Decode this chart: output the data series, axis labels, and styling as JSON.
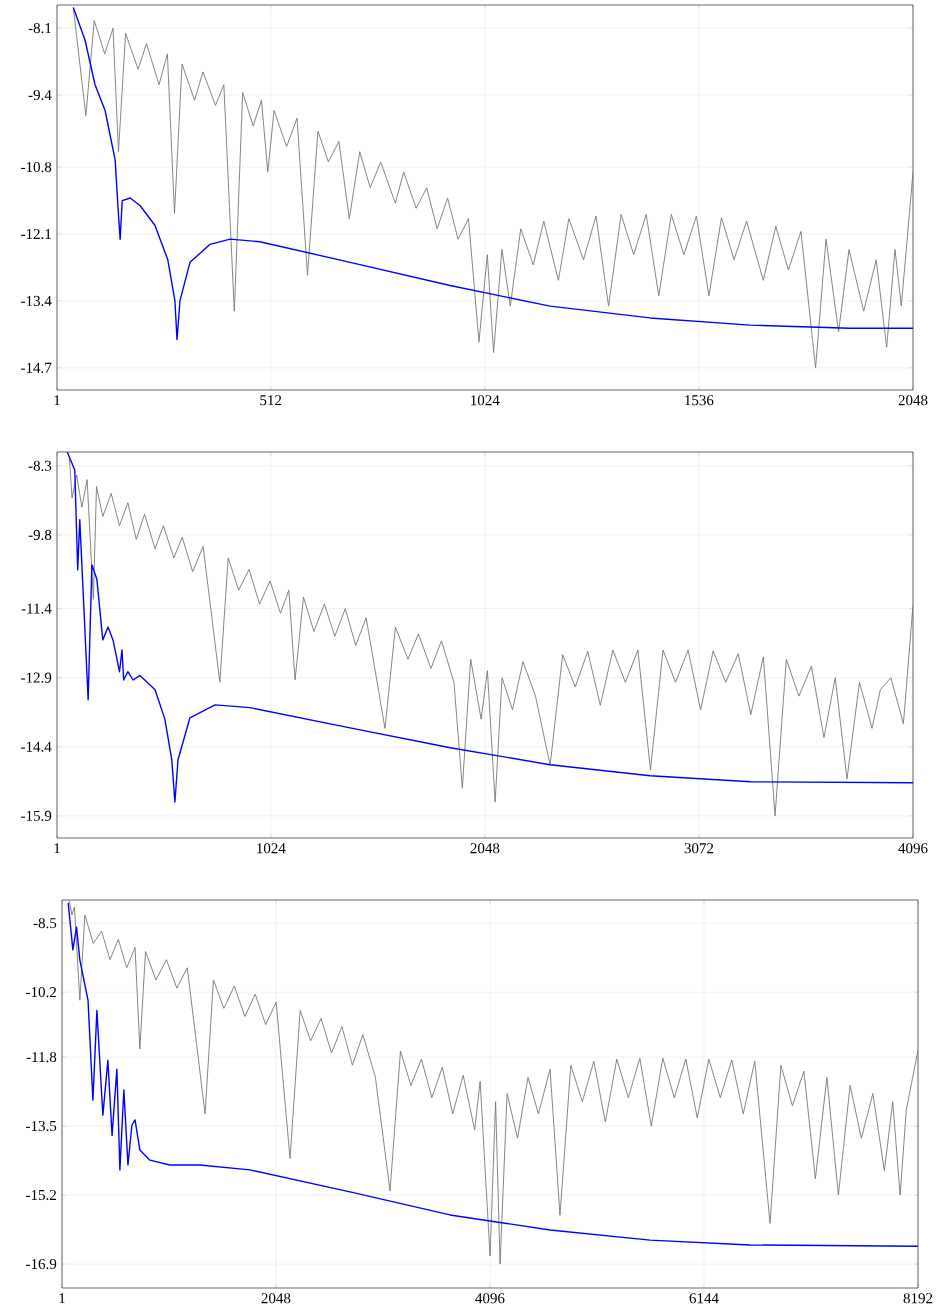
{
  "chart_data": [
    {
      "type": "line",
      "xlim": [
        1,
        2048
      ],
      "ylim": [
        -15.13,
        -7.65
      ],
      "xticks": [
        1,
        512,
        1024,
        1536,
        2048
      ],
      "yticks": [
        -8.1,
        -9.4,
        -10.8,
        -12.1,
        -13.4,
        -14.7
      ],
      "grid": true,
      "series": [
        {
          "color": "#777777",
          "x": [
            40,
            70,
            90,
            115,
            135,
            148,
            165,
            195,
            215,
            245,
            265,
            282,
            300,
            330,
            350,
            380,
            400,
            425,
            445,
            470,
            490,
            505,
            520,
            550,
            575,
            600,
            625,
            650,
            675,
            700,
            725,
            750,
            775,
            810,
            830,
            860,
            885,
            910,
            935,
            960,
            985,
            1010,
            1030,
            1045,
            1065,
            1085,
            1110,
            1140,
            1165,
            1200,
            1225,
            1260,
            1290,
            1320,
            1350,
            1380,
            1410,
            1440,
            1470,
            1500,
            1530,
            1560,
            1590,
            1620,
            1650,
            1690,
            1720,
            1750,
            1780,
            1815,
            1840,
            1870,
            1895,
            1930,
            1960,
            1985,
            2005,
            2020,
            2048
          ],
          "values": [
            -7.7,
            -9.8,
            -7.95,
            -8.6,
            -8.1,
            -10.5,
            -8.2,
            -8.9,
            -8.4,
            -9.2,
            -8.6,
            -11.7,
            -8.8,
            -9.5,
            -8.95,
            -9.6,
            -9.2,
            -13.6,
            -9.35,
            -10.0,
            -9.5,
            -10.9,
            -9.7,
            -10.4,
            -9.85,
            -12.9,
            -10.1,
            -10.7,
            -10.3,
            -11.8,
            -10.5,
            -11.2,
            -10.7,
            -11.5,
            -10.9,
            -11.6,
            -11.2,
            -12.0,
            -11.4,
            -12.2,
            -11.8,
            -14.2,
            -12.5,
            -14.4,
            -12.4,
            -13.5,
            -12.0,
            -12.7,
            -11.85,
            -13.0,
            -11.8,
            -12.6,
            -11.75,
            -13.5,
            -11.72,
            -12.5,
            -11.72,
            -13.3,
            -11.72,
            -12.5,
            -11.75,
            -13.3,
            -11.78,
            -12.6,
            -11.85,
            -13.0,
            -11.95,
            -12.8,
            -12.05,
            -14.7,
            -12.2,
            -14.0,
            -12.4,
            -13.6,
            -12.6,
            -14.3,
            -12.4,
            -13.5,
            -10.9
          ]
        },
        {
          "color": "#0000ff",
          "x": [
            40,
            68,
            92,
            116,
            140,
            147,
            152,
            157,
            176,
            200,
            235,
            266,
            283,
            288,
            295,
            319,
            367,
            415,
            486,
            702,
            941,
            1180,
            1419,
            1658,
            1897,
            2048
          ],
          "values": [
            -7.7,
            -8.33,
            -9.2,
            -9.7,
            -10.66,
            -11.6,
            -12.2,
            -11.45,
            -11.4,
            -11.55,
            -11.93,
            -12.6,
            -13.4,
            -14.15,
            -13.4,
            -12.65,
            -12.3,
            -12.2,
            -12.25,
            -12.65,
            -13.1,
            -13.5,
            -13.73,
            -13.87,
            -13.93,
            -13.93
          ]
        }
      ]
    },
    {
      "type": "line",
      "xlim": [
        1,
        4096
      ],
      "ylim": [
        -16.38,
        -8.0
      ],
      "xticks": [
        1,
        1024,
        2048,
        3072,
        4096
      ],
      "yticks": [
        -8.3,
        -9.8,
        -11.4,
        -12.9,
        -14.4,
        -15.9
      ],
      "grid": true,
      "series": [
        {
          "color": "#777777",
          "x": [
            60,
            73,
            95,
            120,
            145,
            175,
            190,
            220,
            260,
            300,
            340,
            380,
            420,
            470,
            510,
            560,
            600,
            650,
            700,
            780,
            820,
            870,
            920,
            970,
            1020,
            1070,
            1110,
            1140,
            1180,
            1230,
            1280,
            1330,
            1380,
            1430,
            1480,
            1570,
            1620,
            1680,
            1730,
            1790,
            1840,
            1900,
            1940,
            1980,
            2030,
            2060,
            2097,
            2130,
            2180,
            2230,
            2290,
            2360,
            2420,
            2480,
            2540,
            2600,
            2660,
            2720,
            2780,
            2840,
            2900,
            2960,
            3020,
            3080,
            3140,
            3200,
            3260,
            3320,
            3380,
            3436,
            3490,
            3550,
            3610,
            3670,
            3724,
            3780,
            3840,
            3900,
            3940,
            3990,
            4050,
            4096
          ],
          "values": [
            -8.1,
            -9.0,
            -8.5,
            -9.2,
            -8.6,
            -11.2,
            -8.75,
            -9.4,
            -8.9,
            -9.6,
            -9.1,
            -9.9,
            -9.35,
            -10.1,
            -9.6,
            -10.3,
            -9.85,
            -10.6,
            -10.05,
            -13.0,
            -10.3,
            -11.0,
            -10.55,
            -11.3,
            -10.8,
            -11.5,
            -11.0,
            -12.95,
            -11.15,
            -11.9,
            -11.3,
            -12.0,
            -11.4,
            -12.2,
            -11.6,
            -14.0,
            -11.8,
            -12.5,
            -11.95,
            -12.7,
            -12.1,
            -13.0,
            -15.3,
            -12.5,
            -13.8,
            -12.75,
            -15.6,
            -12.9,
            -13.6,
            -12.55,
            -13.3,
            -14.8,
            -12.4,
            -13.1,
            -12.33,
            -13.5,
            -12.3,
            -13.0,
            -12.3,
            -14.9,
            -12.3,
            -13.0,
            -12.3,
            -13.6,
            -12.32,
            -13.0,
            -12.38,
            -13.7,
            -12.45,
            -15.9,
            -12.5,
            -13.3,
            -12.65,
            -14.2,
            -12.9,
            -15.1,
            -13.0,
            -14.0,
            -13.16,
            -12.9,
            -13.9,
            -11.32
          ]
        },
        {
          "color": "#0000ff",
          "x": [
            50,
            86,
            100,
            110,
            150,
            168,
            192,
            220,
            245,
            270,
            300,
            312,
            320,
            340,
            365,
            398,
            470,
            517,
            550,
            565,
            580,
            637,
            757,
            924,
            1403,
            1882,
            2360,
            2839,
            3317,
            4096
          ],
          "values": [
            -8.0,
            -8.39,
            -10.56,
            -9.47,
            -13.38,
            -10.45,
            -10.77,
            -12.08,
            -11.8,
            -12.1,
            -12.77,
            -12.3,
            -12.95,
            -12.77,
            -12.95,
            -12.85,
            -13.16,
            -13.8,
            -14.68,
            -15.6,
            -14.68,
            -13.77,
            -13.49,
            -13.55,
            -13.99,
            -14.42,
            -14.79,
            -15.03,
            -15.16,
            -15.18
          ]
        }
      ]
    },
    {
      "type": "line",
      "xlim": [
        1,
        8192
      ],
      "ylim": [
        -17.49,
        -7.93
      ],
      "xticks": [
        1,
        2048,
        4096,
        6144,
        8192
      ],
      "yticks": [
        -8.5,
        -10.2,
        -11.8,
        -13.5,
        -15.2,
        -16.9
      ],
      "grid": true,
      "series": [
        {
          "color": "#777777",
          "x": [
            70,
            96,
            120,
            172,
            220,
            300,
            380,
            460,
            540,
            620,
            700,
            746,
            800,
            900,
            1000,
            1100,
            1200,
            1370,
            1450,
            1550,
            1650,
            1750,
            1850,
            1950,
            2050,
            2183,
            2280,
            2380,
            2480,
            2580,
            2680,
            2780,
            2880,
            3000,
            3140,
            3240,
            3340,
            3440,
            3540,
            3640,
            3740,
            3840,
            3950,
            4002,
            4097,
            4150,
            4193,
            4260,
            4360,
            4460,
            4560,
            4671,
            4766,
            4870,
            4980,
            5090,
            5200,
            5310,
            5420,
            5530,
            5640,
            5750,
            5860,
            5970,
            6080,
            6190,
            6300,
            6410,
            6520,
            6630,
            6776,
            6880,
            6990,
            7100,
            7210,
            7320,
            7430,
            7542,
            7650,
            7760,
            7870,
            7950,
            8021,
            8080,
            8192
          ],
          "values": [
            -7.95,
            -8.3,
            -8.1,
            -10.4,
            -8.3,
            -9.0,
            -8.7,
            -9.4,
            -8.9,
            -9.6,
            -9.1,
            -11.6,
            -9.2,
            -9.9,
            -9.4,
            -10.1,
            -9.6,
            -13.2,
            -9.9,
            -10.6,
            -10.05,
            -10.8,
            -10.25,
            -11.0,
            -10.45,
            -14.3,
            -10.65,
            -11.4,
            -10.85,
            -11.7,
            -11.05,
            -12.0,
            -11.25,
            -12.3,
            -15.1,
            -11.65,
            -12.5,
            -11.85,
            -12.8,
            -12.05,
            -13.2,
            -12.25,
            -13.6,
            -12.4,
            -16.7,
            -12.9,
            -16.9,
            -12.7,
            -13.8,
            -12.3,
            -13.2,
            -12.1,
            -15.7,
            -12.0,
            -12.9,
            -11.9,
            -13.4,
            -11.85,
            -12.8,
            -11.83,
            -13.5,
            -11.83,
            -12.8,
            -11.85,
            -13.3,
            -11.85,
            -12.8,
            -11.87,
            -13.2,
            -11.9,
            -15.9,
            -12.0,
            -13.0,
            -12.15,
            -14.8,
            -12.3,
            -15.2,
            -12.5,
            -13.8,
            -12.7,
            -14.6,
            -12.9,
            -15.2,
            -13.1,
            -11.63
          ]
        },
        {
          "color": "#0000ff",
          "x": [
            60,
            105,
            140,
            172,
            250,
            297,
            335,
            392,
            440,
            480,
            526,
            555,
            593,
            632,
            670,
            700,
            746,
            842,
            1033,
            1320,
            1800,
            2757,
            3714,
            4671,
            5628,
            6585,
            8192
          ],
          "values": [
            -8.0,
            -9.16,
            -8.6,
            -9.41,
            -10.4,
            -12.86,
            -10.65,
            -13.23,
            -11.88,
            -13.73,
            -12.1,
            -14.58,
            -12.61,
            -14.46,
            -13.48,
            -13.35,
            -14.09,
            -14.34,
            -14.46,
            -14.46,
            -14.58,
            -15.12,
            -15.69,
            -16.06,
            -16.31,
            -16.43,
            -16.46
          ]
        }
      ]
    }
  ]
}
